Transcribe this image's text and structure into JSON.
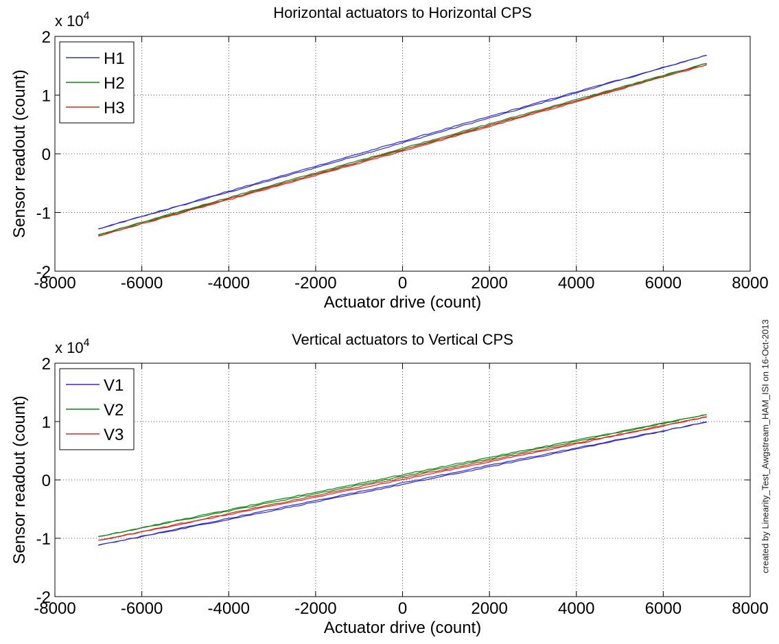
{
  "chart_data": [
    {
      "type": "line",
      "title": "Horizontal actuators to Horizontal CPS",
      "xlabel": "Actuator drive (count)",
      "ylabel": "Sensor readout (count)",
      "y_exponent_label": "x 10",
      "y_exponent_power": "4",
      "xlim": [
        -8000,
        8000
      ],
      "ylim": [
        -20000,
        20000
      ],
      "x_ticks": [
        -8000,
        -6000,
        -4000,
        -2000,
        0,
        2000,
        4000,
        6000,
        8000
      ],
      "y_ticks": [
        -2,
        -1,
        0,
        1,
        2
      ],
      "y_tick_scale": 10000,
      "grid": true,
      "legend_position": "top-left",
      "x": [
        -7000,
        7000
      ],
      "series": [
        {
          "name": "H1",
          "color": "#2b2bd6",
          "values": [
            -12800,
            16800
          ]
        },
        {
          "name": "H2",
          "color": "#0a8a0a",
          "values": [
            -13800,
            15400
          ]
        },
        {
          "name": "H3",
          "color": "#e8201c",
          "values": [
            -14000,
            15200
          ]
        }
      ]
    },
    {
      "type": "line",
      "title": "Vertical actuators to Vertical CPS",
      "xlabel": "Actuator drive (count)",
      "ylabel": "Sensor readout (count)",
      "y_exponent_label": "x 10",
      "y_exponent_power": "4",
      "xlim": [
        -8000,
        8000
      ],
      "ylim": [
        -20000,
        20000
      ],
      "x_ticks": [
        -8000,
        -6000,
        -4000,
        -2000,
        0,
        2000,
        4000,
        6000,
        8000
      ],
      "y_ticks": [
        -2,
        -1,
        0,
        1,
        2
      ],
      "y_tick_scale": 10000,
      "grid": true,
      "legend_position": "top-left",
      "x": [
        -7000,
        7000
      ],
      "series": [
        {
          "name": "V1",
          "color": "#2b2bd6",
          "values": [
            -11200,
            9900
          ]
        },
        {
          "name": "V2",
          "color": "#0a8a0a",
          "values": [
            -9700,
            11200
          ]
        },
        {
          "name": "V3",
          "color": "#e8201c",
          "values": [
            -10400,
            10800
          ]
        }
      ]
    }
  ],
  "credit_text": "created by Linearity_Test_Awgstream_HAM_ISI on 16-Oct-2013"
}
